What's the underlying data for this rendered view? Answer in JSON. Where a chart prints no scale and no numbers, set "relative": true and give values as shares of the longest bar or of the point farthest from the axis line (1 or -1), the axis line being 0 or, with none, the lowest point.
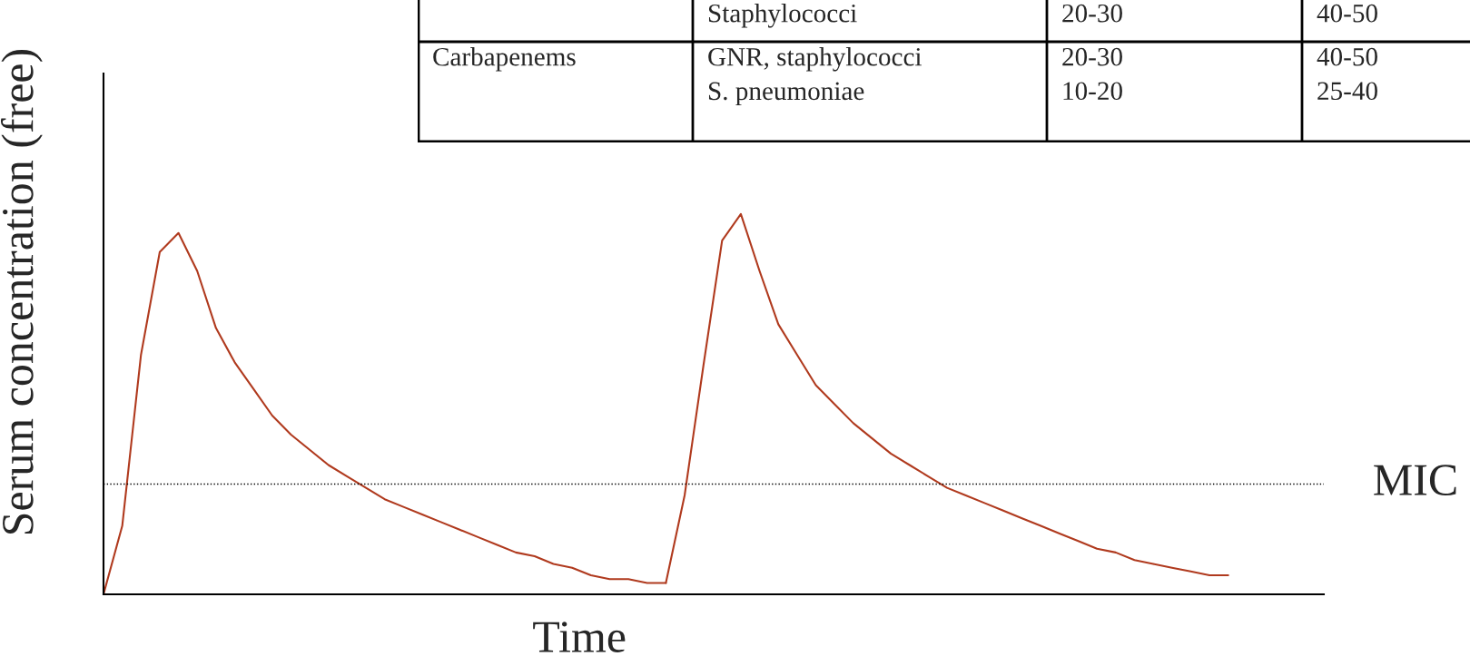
{
  "chart_data": [
    {
      "type": "other",
      "annotations": [
        "Staphylococci",
        "20-30",
        "40-50",
        "Carbapenems",
        "GNR, staphylococci\nS. pneumoniae",
        "20-30\n10-20",
        "40-50\n25-40"
      ]
    },
    {
      "type": "line",
      "relative": true,
      "xlabel": "Time",
      "ylabel": "Serum concentration (free)",
      "categories": [
        null,
        null,
        null,
        null,
        null,
        null,
        null,
        null,
        null,
        null,
        null,
        null,
        null,
        null,
        null,
        null,
        null,
        null,
        null,
        null,
        null,
        null,
        null,
        null,
        null,
        null,
        null,
        null,
        null,
        null,
        null,
        null,
        null,
        null,
        null,
        null,
        null,
        null,
        null,
        null,
        null,
        null,
        null,
        null,
        null,
        null,
        null,
        null,
        null,
        null,
        null,
        null,
        null,
        null,
        null,
        null,
        null,
        null,
        null,
        null,
        null,
        null,
        null,
        null,
        null,
        null
      ],
      "series": [
        {
          "color": "#b03a1e",
          "values": [
            0,
            0.18,
            0.63,
            0.9,
            0.95,
            0.85,
            0.7,
            0.61,
            0.54,
            0.47,
            0.42,
            0.38,
            0.34,
            0.31,
            0.28,
            0.25,
            0.23,
            0.21,
            0.19,
            0.17,
            0.15,
            0.13,
            0.11,
            0.1,
            0.08,
            0.07,
            0.05,
            0.04,
            0.04,
            0.03,
            0.03,
            null,
            null,
            null,
            null,
            null,
            null,
            null,
            null,
            null,
            null,
            null,
            null,
            null,
            null,
            null,
            null,
            null,
            null,
            null,
            null,
            null,
            null,
            null,
            null,
            null,
            null,
            null,
            null,
            null,
            null,
            null,
            null,
            null,
            null,
            null
          ]
        },
        {
          "color": "#b03a1e",
          "values": [
            null,
            null,
            null,
            null,
            null,
            null,
            null,
            null,
            null,
            null,
            null,
            null,
            null,
            null,
            null,
            null,
            null,
            null,
            null,
            null,
            null,
            null,
            null,
            null,
            null,
            null,
            null,
            null,
            null,
            null,
            0.03,
            0.26,
            0.6,
            0.93,
            1.0,
            0.85,
            0.71,
            0.63,
            0.55,
            0.5,
            0.45,
            0.41,
            0.37,
            0.34,
            0.31,
            0.28,
            0.26,
            0.24,
            0.22,
            0.2,
            0.18,
            0.16,
            0.14,
            0.12,
            0.11,
            0.09,
            0.08,
            0.07,
            0.06,
            0.05,
            0.05,
            null,
            null,
            null,
            null,
            null
          ]
        }
      ],
      "ref_lines": [
        {
          "axis": "y",
          "value": 0.29,
          "label": "MIC",
          "color": "#000000",
          "line_style": "dotted"
        }
      ],
      "marker": "none",
      "line_style": "solid",
      "legend": false
    }
  ]
}
